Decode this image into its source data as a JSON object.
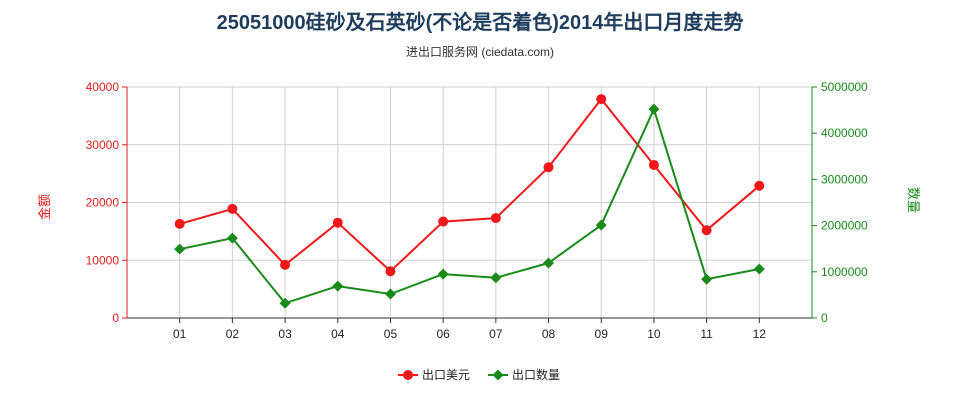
{
  "chart_data": {
    "type": "line",
    "title": "25051000硅砂及石英砂(不论是否着色)2014年出口月度走势",
    "subtitle": "进出口服务网 (ciedata.com)",
    "categories": [
      "01",
      "02",
      "03",
      "04",
      "05",
      "06",
      "07",
      "08",
      "09",
      "10",
      "11",
      "12"
    ],
    "y_left": {
      "label": "金额",
      "range": [
        0,
        40000
      ],
      "ticks": [
        0,
        10000,
        20000,
        30000,
        40000
      ],
      "color": "#e0201e"
    },
    "y_right": {
      "label": "数量",
      "range": [
        0,
        5000000
      ],
      "ticks": [
        0,
        1000000,
        2000000,
        3000000,
        4000000,
        5000000
      ],
      "color": "#1a8a1a"
    },
    "series": [
      {
        "name": "出口美元",
        "axis": "left",
        "color": "#f01818",
        "marker": "circle",
        "values": [
          16300,
          18900,
          9200,
          16500,
          8100,
          16700,
          17300,
          26100,
          37900,
          26500,
          15200,
          22900
        ]
      },
      {
        "name": "出口数量",
        "axis": "right",
        "color": "#1a8a1a",
        "marker": "diamond",
        "values": [
          1490000,
          1730000,
          320000,
          690000,
          520000,
          950000,
          870000,
          1190000,
          2010000,
          4520000,
          840000,
          1060000
        ]
      }
    ],
    "grid": true,
    "legend_position": "bottom"
  }
}
